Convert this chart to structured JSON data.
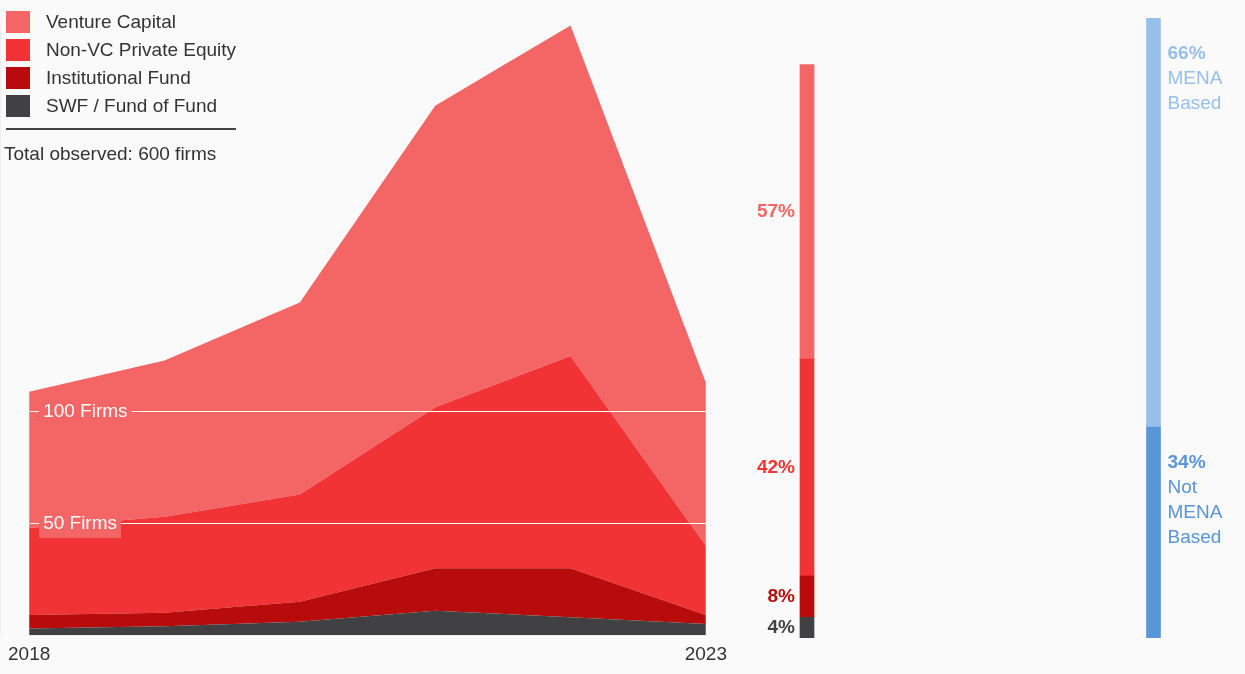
{
  "chart_data": [
    {
      "type": "area",
      "stacked": true,
      "x": [
        2018,
        2019,
        2020,
        2021,
        2022,
        2023
      ],
      "xlim": [
        2018,
        2023
      ],
      "xticks": [
        2018,
        2023
      ],
      "ylim": [
        0,
        273
      ],
      "yticks": [
        {
          "value": 50,
          "label": "50 Firms"
        },
        {
          "value": 100,
          "label": "100 Firms"
        }
      ],
      "grid": "y",
      "legend": "top left",
      "series": [
        {
          "name": "SWF / Fund of Fund",
          "color": "#414143",
          "values": [
            3,
            4,
            6,
            11,
            8,
            5
          ]
        },
        {
          "name": "Institutional Fund",
          "color": "#b80c0c",
          "values": [
            6,
            6,
            9,
            19,
            22,
            4
          ]
        },
        {
          "name": "Non-VC Private Equity",
          "color": "#f23336",
          "values": [
            39,
            43,
            48,
            72,
            95,
            31
          ]
        },
        {
          "name": "Venture Capital",
          "color": "#f46565",
          "values": [
            61,
            70,
            86,
            135,
            148,
            73
          ]
        }
      ],
      "annotations": [
        "Total observed: 600 firms"
      ]
    },
    {
      "type": "other",
      "categories": [
        null,
        null,
        null,
        null
      ],
      "values": [
        57,
        42,
        8,
        4
      ],
      "value_labels": [
        "57%",
        "42%",
        "8%",
        "4%"
      ],
      "colors": [
        "#f46565",
        "#f23336",
        "#b80c0c",
        "#414143"
      ]
    },
    {
      "type": "other",
      "categories": [
        "MENA Based",
        "Not MENA Based"
      ],
      "values": [
        66,
        34
      ],
      "value_labels": [
        "66%",
        "34%"
      ],
      "colors": [
        "#96c0ea",
        "#5896d8"
      ]
    }
  ]
}
